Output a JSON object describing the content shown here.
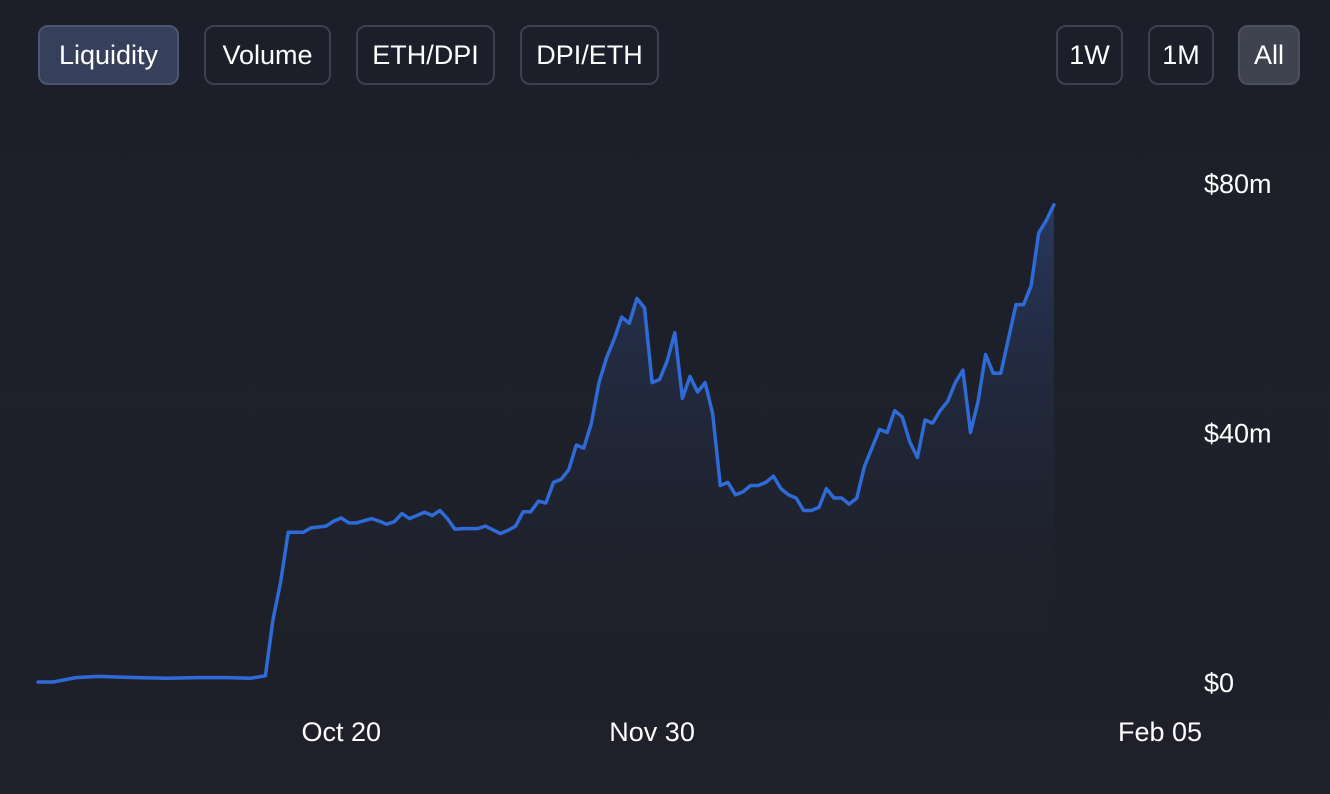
{
  "metric_tabs": [
    {
      "label": "Liquidity",
      "active": true
    },
    {
      "label": "Volume",
      "active": false
    },
    {
      "label": "ETH/DPI",
      "active": false
    },
    {
      "label": "DPI/ETH",
      "active": false
    }
  ],
  "range_tabs": [
    {
      "label": "1W",
      "active": false
    },
    {
      "label": "1M",
      "active": false
    },
    {
      "label": "All",
      "active": true
    }
  ],
  "colors": {
    "line": "#2f6bd6",
    "fill_top": "#2a3c66",
    "background": "#1e2029"
  },
  "chart_data": {
    "type": "area",
    "x_start": "2020-09-10",
    "x_end": "2021-02-05",
    "x_ticks": [
      {
        "date": "2020-10-20",
        "label": "Oct 20"
      },
      {
        "date": "2020-11-30",
        "label": "Nov 30"
      },
      {
        "date": "2021-02-05",
        "label": "Feb 05"
      }
    ],
    "y_ticks": [
      {
        "value": 0,
        "label": "$0"
      },
      {
        "value": 40,
        "label": "$40m"
      },
      {
        "value": 80,
        "label": "$80m"
      }
    ],
    "ylim": [
      0,
      84
    ],
    "y_unit": "$m",
    "series": [
      {
        "points": [
          [
            "2020-09-10",
            0.0
          ],
          [
            "2020-09-12",
            0.0
          ],
          [
            "2020-09-15",
            0.7
          ],
          [
            "2020-09-18",
            0.9
          ],
          [
            "2020-09-23",
            0.7
          ],
          [
            "2020-09-27",
            0.6
          ],
          [
            "2020-10-01",
            0.7
          ],
          [
            "2020-10-05",
            0.7
          ],
          [
            "2020-10-08",
            0.6
          ],
          [
            "2020-10-10",
            1.0
          ],
          [
            "2020-10-11",
            10.0
          ],
          [
            "2020-10-12",
            16.0
          ],
          [
            "2020-10-13",
            24.0
          ],
          [
            "2020-10-15",
            24.0
          ],
          [
            "2020-10-16",
            24.7
          ],
          [
            "2020-10-18",
            25.0
          ],
          [
            "2020-10-19",
            25.8
          ],
          [
            "2020-10-20",
            26.3
          ],
          [
            "2020-10-21",
            25.5
          ],
          [
            "2020-10-22",
            25.5
          ],
          [
            "2020-10-24",
            26.2
          ],
          [
            "2020-10-25",
            25.8
          ],
          [
            "2020-10-26",
            25.3
          ],
          [
            "2020-10-27",
            25.7
          ],
          [
            "2020-10-28",
            27.0
          ],
          [
            "2020-10-29",
            26.2
          ],
          [
            "2020-10-31",
            27.2
          ],
          [
            "2020-11-01",
            26.7
          ],
          [
            "2020-11-02",
            27.5
          ],
          [
            "2020-11-03",
            26.2
          ],
          [
            "2020-11-04",
            24.5
          ],
          [
            "2020-11-05",
            24.6
          ],
          [
            "2020-11-07",
            24.6
          ],
          [
            "2020-11-08",
            25.0
          ],
          [
            "2020-11-09",
            24.4
          ],
          [
            "2020-11-10",
            23.8
          ],
          [
            "2020-11-11",
            24.3
          ],
          [
            "2020-11-12",
            25.0
          ],
          [
            "2020-11-13",
            27.3
          ],
          [
            "2020-11-14",
            27.3
          ],
          [
            "2020-11-15",
            29.0
          ],
          [
            "2020-11-16",
            28.7
          ],
          [
            "2020-11-17",
            32.0
          ],
          [
            "2020-11-18",
            32.5
          ],
          [
            "2020-11-19",
            34.0
          ],
          [
            "2020-11-20",
            38.0
          ],
          [
            "2020-11-21",
            37.5
          ],
          [
            "2020-11-22",
            41.5
          ],
          [
            "2020-11-23",
            48.0
          ],
          [
            "2020-11-24",
            52.0
          ],
          [
            "2020-11-25",
            55.0
          ],
          [
            "2020-11-26",
            58.5
          ],
          [
            "2020-11-27",
            57.5
          ],
          [
            "2020-11-28",
            61.5
          ],
          [
            "2020-11-29",
            60.0
          ],
          [
            "2020-11-30",
            48.0
          ],
          [
            "2020-12-01",
            48.5
          ],
          [
            "2020-12-02",
            51.5
          ],
          [
            "2020-12-03",
            56.0
          ],
          [
            "2020-12-04",
            45.5
          ],
          [
            "2020-12-05",
            49.0
          ],
          [
            "2020-12-06",
            46.5
          ],
          [
            "2020-12-07",
            48.0
          ],
          [
            "2020-12-08",
            43.0
          ],
          [
            "2020-12-09",
            31.5
          ],
          [
            "2020-12-10",
            32.0
          ],
          [
            "2020-12-11",
            30.0
          ],
          [
            "2020-12-12",
            30.5
          ],
          [
            "2020-12-13",
            31.5
          ],
          [
            "2020-12-14",
            31.5
          ],
          [
            "2020-12-15",
            32.0
          ],
          [
            "2020-12-16",
            33.0
          ],
          [
            "2020-12-17",
            31.0
          ],
          [
            "2020-12-18",
            30.0
          ],
          [
            "2020-12-19",
            29.5
          ],
          [
            "2020-12-20",
            27.5
          ],
          [
            "2020-12-21",
            27.5
          ],
          [
            "2020-12-22",
            28.0
          ],
          [
            "2020-12-23",
            31.0
          ],
          [
            "2020-12-24",
            29.5
          ],
          [
            "2020-12-25",
            29.5
          ],
          [
            "2020-12-26",
            28.5
          ],
          [
            "2020-12-27",
            29.5
          ],
          [
            "2020-12-28",
            34.5
          ],
          [
            "2020-12-29",
            37.5
          ],
          [
            "2020-12-30",
            40.5
          ],
          [
            "2020-12-31",
            40.0
          ],
          [
            "2021-01-01",
            43.5
          ],
          [
            "2021-01-02",
            42.5
          ],
          [
            "2021-01-03",
            38.5
          ],
          [
            "2021-01-04",
            36.0
          ],
          [
            "2021-01-05",
            42.0
          ],
          [
            "2021-01-06",
            41.5
          ],
          [
            "2021-01-07",
            43.5
          ],
          [
            "2021-01-08",
            45.0
          ],
          [
            "2021-01-09",
            48.0
          ],
          [
            "2021-01-10",
            50.0
          ],
          [
            "2021-01-11",
            40.0
          ],
          [
            "2021-01-12",
            45.0
          ],
          [
            "2021-01-13",
            52.5
          ],
          [
            "2021-01-14",
            49.5
          ],
          [
            "2021-01-15",
            49.5
          ],
          [
            "2021-01-16",
            55.0
          ],
          [
            "2021-01-17",
            60.5
          ],
          [
            "2021-01-18",
            60.5
          ],
          [
            "2021-01-19",
            63.5
          ],
          [
            "2021-01-20",
            72.0
          ],
          [
            "2021-01-21",
            74.0
          ],
          [
            "2021-01-22",
            76.5
          ]
        ]
      }
    ]
  }
}
